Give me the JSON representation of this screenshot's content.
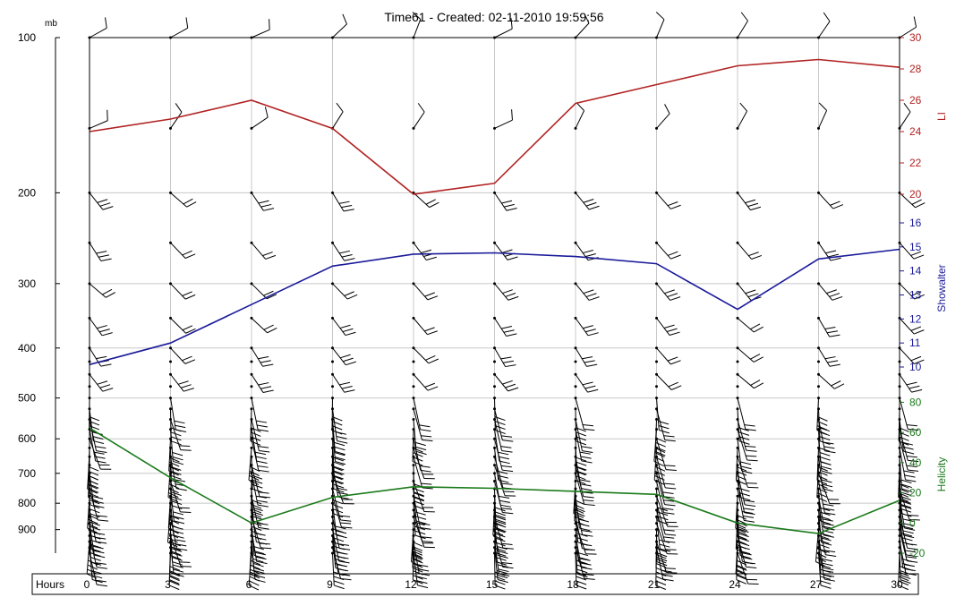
{
  "title": "Time61 - Created:  02-11-2010  19:59:56",
  "chart_data": {
    "type": "line",
    "title": "Time61 - Created:  02-11-2010  19:59:56",
    "xlabel": "Hours",
    "x": [
      0,
      3,
      6,
      9,
      12,
      15,
      18,
      21,
      24,
      27,
      30
    ],
    "xlim": [
      0,
      30
    ],
    "pressure_axis": {
      "unit": "mb",
      "ticks": [
        100,
        200,
        300,
        400,
        500,
        600,
        700,
        800,
        900
      ],
      "range": [
        100,
        1000
      ],
      "log": true
    },
    "gridlines_mb": [
      100,
      200,
      300,
      400,
      500,
      600,
      700,
      800,
      900
    ],
    "wind_levels_mb": [
      100,
      150,
      250,
      400,
      500,
      700,
      850,
      1000
    ],
    "series": [
      {
        "name": "LI",
        "color": "#b22222",
        "axis_ticks": [
          20,
          22,
          24,
          26,
          28,
          30
        ],
        "axis_range": [
          20,
          30
        ],
        "y": [
          24.0,
          24.8,
          26.0,
          24.2,
          20.0,
          20.7,
          25.8,
          27.0,
          28.2,
          28.6,
          28.1
        ]
      },
      {
        "name": "Showalter",
        "color": "#1a1a9a",
        "axis_ticks": [
          10,
          11,
          12,
          13,
          14,
          15,
          16
        ],
        "axis_range": [
          10,
          16
        ],
        "y": [
          10.1,
          11.0,
          12.6,
          14.2,
          14.7,
          14.75,
          14.6,
          14.3,
          12.4,
          14.5,
          14.9
        ]
      },
      {
        "name": "Helicity",
        "color": "#1a7a1a",
        "axis_ticks": [
          -20,
          0,
          20,
          40,
          60,
          80
        ],
        "axis_range": [
          -20,
          85
        ],
        "y": [
          63,
          30,
          0,
          17,
          24,
          23,
          21,
          19,
          0,
          -7,
          15
        ]
      }
    ]
  }
}
